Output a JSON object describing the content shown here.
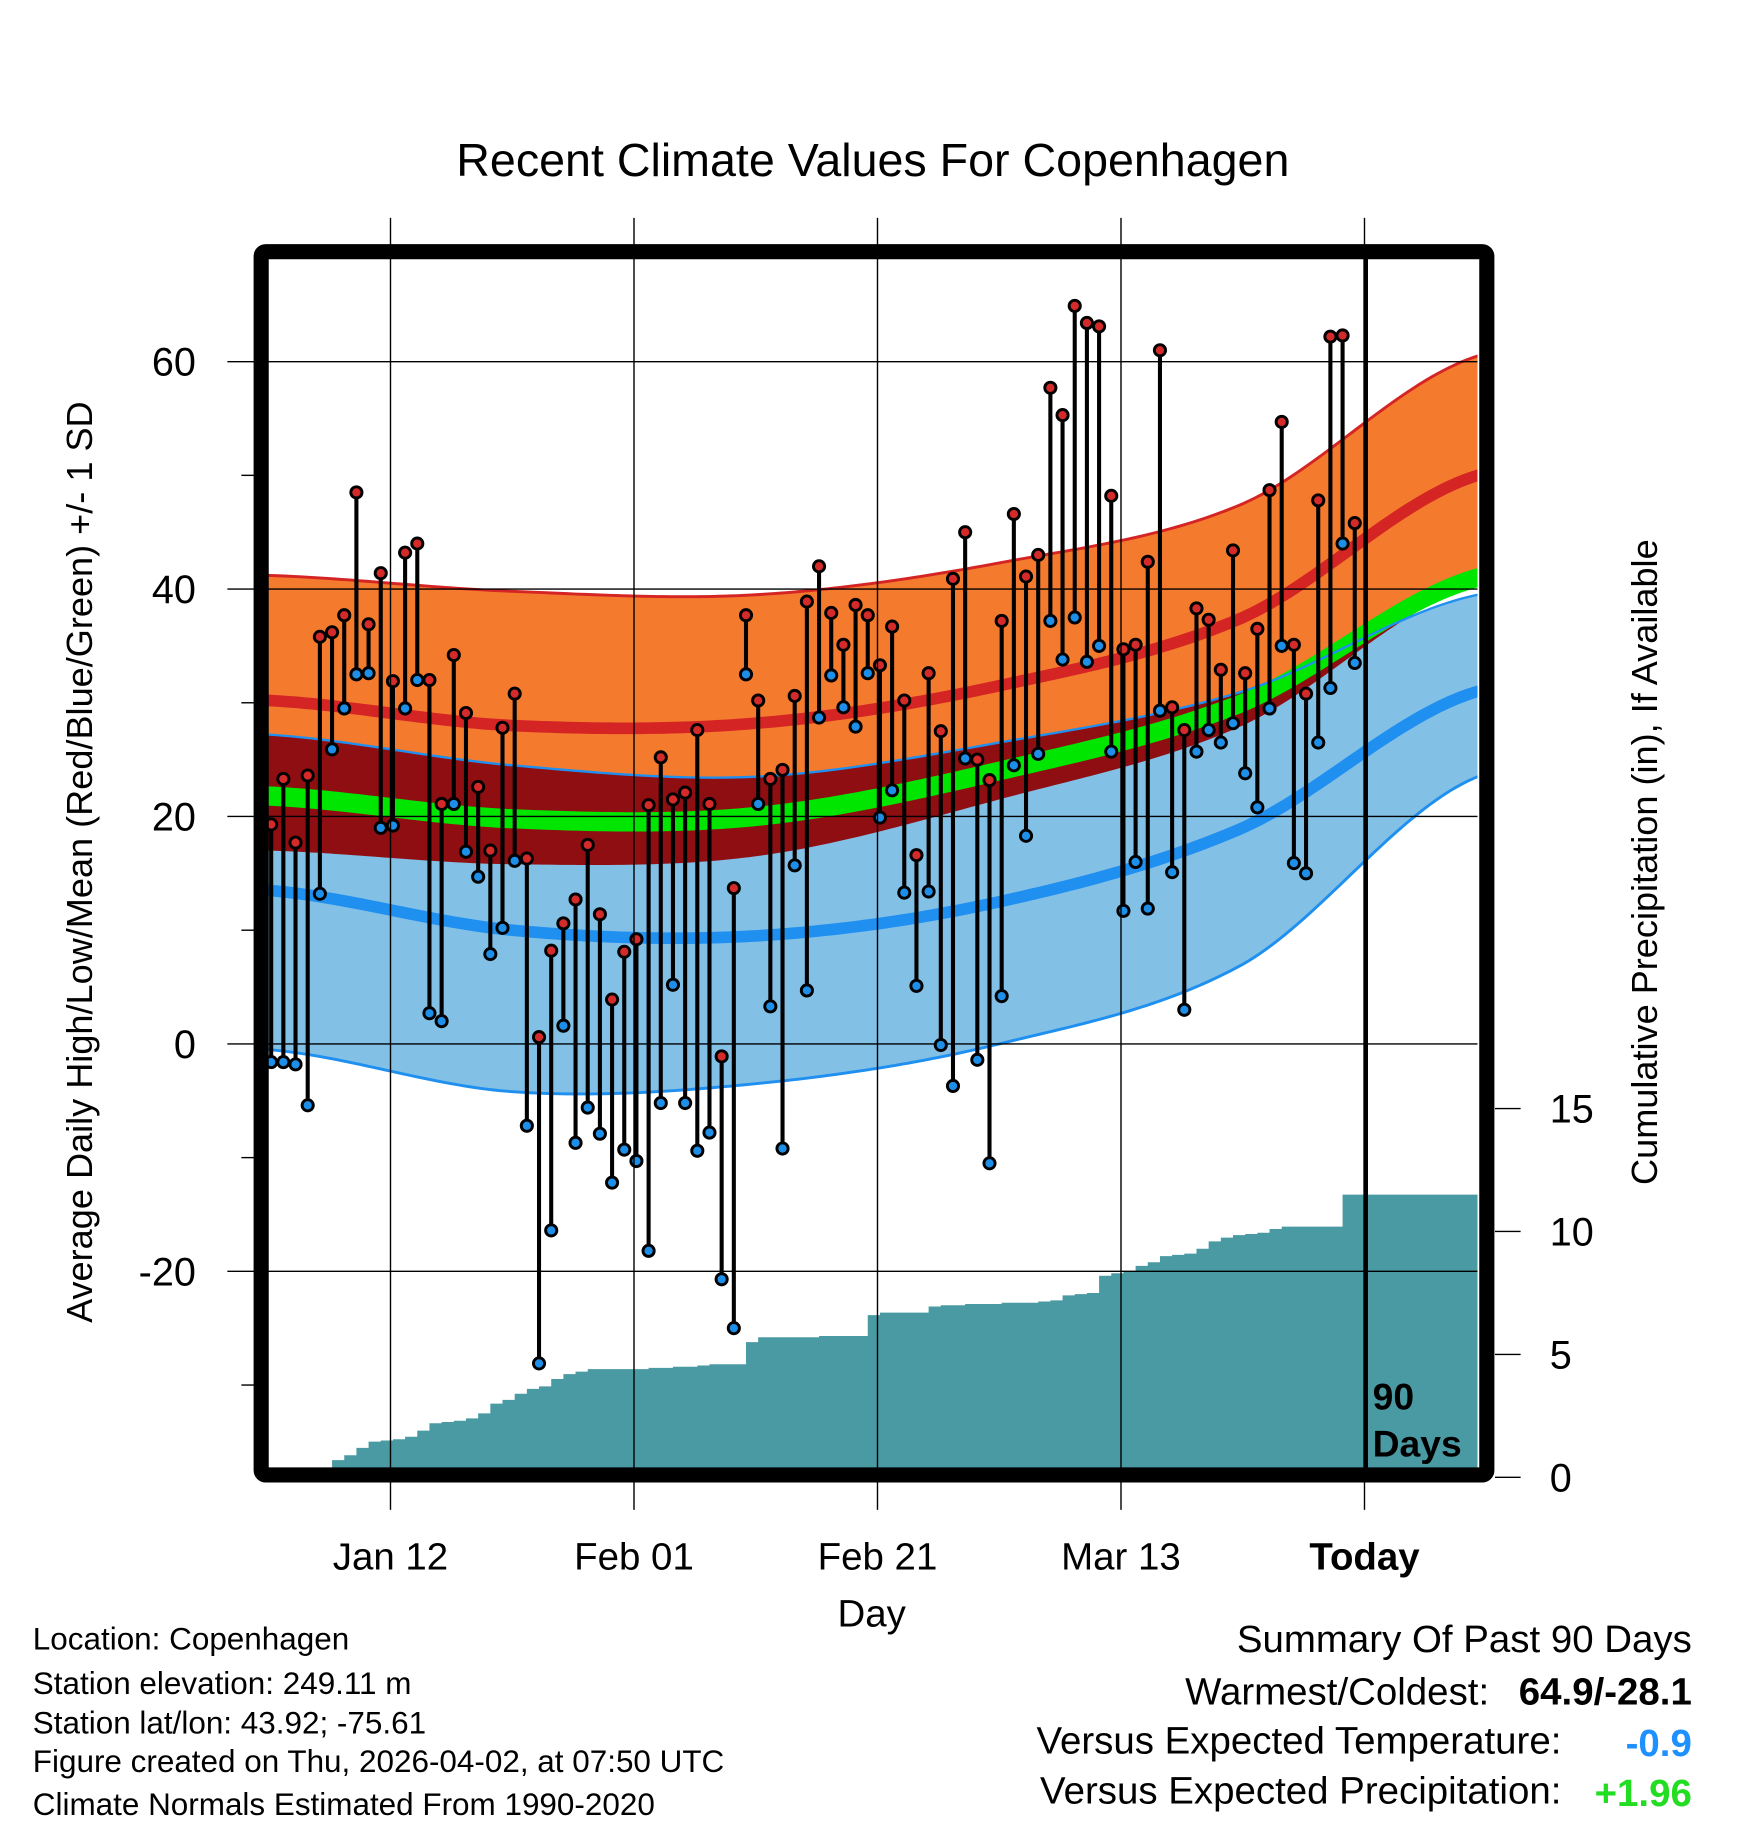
{
  "chart_data": {
    "type": "line",
    "title": "Recent Climate Values For Copenhagen",
    "xlabel": "Day",
    "ylabel": "Average Daily High/Low/Mean (Red/Blue/Green) +/- 1 SD",
    "y2label": "Cumulative Precipitation (in), If Available",
    "ylim": [
      -37.3,
      69
    ],
    "y2lim": [
      0,
      18
    ],
    "yticks": [
      "60",
      "40",
      "20",
      "0",
      "-20"
    ],
    "y2ticks": [
      "15",
      "10",
      "5",
      "0"
    ],
    "xticks": [
      "Jan 12",
      "Feb 01",
      "Feb 21",
      "Mar 13",
      "Today"
    ],
    "xtick_days": [
      10,
      30,
      50,
      70,
      90
    ],
    "x_range_days": [
      0,
      99.3
    ],
    "grid": true,
    "today_marker_label": [
      "90",
      "Days"
    ],
    "daily_high": [
      19.3,
      23.3,
      17.7,
      23.6,
      35.8,
      36.2,
      37.7,
      48.5,
      36.9,
      41.4,
      31.9,
      43.2,
      44.0,
      32.0,
      21.1,
      34.2,
      29.1,
      22.6,
      17.0,
      27.8,
      30.8,
      16.3,
      0.6,
      8.2,
      10.6,
      12.7,
      17.5,
      11.4,
      3.9,
      8.1,
      9.2,
      21.0,
      25.2,
      21.5,
      22.1,
      27.6,
      21.1,
      -1.1,
      13.7,
      37.7,
      30.2,
      23.3,
      24.1,
      30.6,
      38.9,
      42.0,
      37.9,
      35.1,
      38.6,
      37.7,
      33.3,
      36.7,
      30.2,
      16.6,
      32.6,
      27.5,
      40.9,
      45.0,
      25.0,
      23.2,
      37.2,
      46.6,
      41.1,
      43.0,
      57.7,
      55.3,
      64.9,
      63.4,
      63.1,
      48.2,
      34.7,
      35.1,
      42.4,
      61.0,
      29.6,
      27.6,
      38.3,
      37.3,
      32.9,
      43.4,
      32.6,
      36.5,
      48.7,
      54.7,
      35.1,
      30.8,
      47.8,
      62.2,
      62.3,
      45.8
    ],
    "daily_low": [
      -1.6,
      -1.6,
      -1.8,
      -5.4,
      13.2,
      25.9,
      29.5,
      32.5,
      32.6,
      19.0,
      19.2,
      29.5,
      32.0,
      2.7,
      2.0,
      21.1,
      16.9,
      14.7,
      7.9,
      10.2,
      16.1,
      -7.2,
      -28.1,
      -16.4,
      1.6,
      -8.7,
      -5.6,
      -7.9,
      -12.2,
      -9.3,
      -10.3,
      -18.2,
      -5.2,
      5.2,
      -5.2,
      -9.4,
      -7.8,
      -20.7,
      -25.0,
      32.5,
      21.1,
      3.3,
      -9.2,
      15.7,
      4.7,
      28.7,
      32.4,
      29.6,
      27.9,
      32.6,
      19.9,
      22.3,
      13.3,
      5.1,
      13.4,
      -0.1,
      -3.7,
      25.1,
      -1.4,
      -10.5,
      4.2,
      24.5,
      18.3,
      25.5,
      37.2,
      33.8,
      37.5,
      33.6,
      35.0,
      25.7,
      11.7,
      16.0,
      11.9,
      29.3,
      15.1,
      3.0,
      25.7,
      27.6,
      26.5,
      28.2,
      23.8,
      20.8,
      29.5,
      35.0,
      15.9,
      15.0,
      26.5,
      31.3,
      44.0,
      33.5
    ],
    "precip_cumulative": [
      0,
      0,
      0,
      0,
      0.2,
      0.7,
      0.9,
      1.2,
      1.45,
      1.5,
      1.55,
      1.65,
      1.9,
      2.2,
      2.25,
      2.3,
      2.4,
      2.6,
      3.0,
      3.15,
      3.4,
      3.6,
      3.7,
      4.0,
      4.2,
      4.3,
      4.4,
      4.4,
      4.4,
      4.4,
      4.4,
      4.45,
      4.45,
      4.5,
      4.5,
      4.55,
      4.6,
      4.6,
      4.6,
      5.5,
      5.7,
      5.7,
      5.7,
      5.7,
      5.7,
      5.75,
      5.75,
      5.75,
      5.75,
      6.6,
      6.7,
      6.7,
      6.7,
      6.7,
      6.95,
      7.0,
      7.0,
      7.05,
      7.05,
      7.05,
      7.1,
      7.1,
      7.1,
      7.15,
      7.2,
      7.4,
      7.45,
      7.5,
      8.2,
      8.3,
      8.4,
      8.6,
      8.75,
      9.0,
      9.05,
      9.1,
      9.3,
      9.6,
      9.75,
      9.85,
      9.9,
      9.95,
      10.1,
      10.2,
      10.2,
      10.2,
      10.2,
      10.2,
      11.5,
      11.5
    ],
    "normals": {
      "anchor_days": [
        0,
        20,
        40,
        60,
        80,
        99.3
      ],
      "high_plus_sd": [
        41.2,
        39.8,
        39.5,
        42.3,
        47.5,
        60.5
      ],
      "high_mean": [
        30.2,
        28.0,
        28.2,
        31.5,
        37.5,
        50.0
      ],
      "high_minus_sd": [
        17.0,
        15.8,
        16.5,
        21.5,
        28.0,
        40.5
      ],
      "mean": [
        21.8,
        19.8,
        20.0,
        24.0,
        30.0,
        41.0
      ],
      "low_plus_sd": [
        27.2,
        24.5,
        23.5,
        26.5,
        31.0,
        39.5
      ],
      "low_mean": [
        13.5,
        10.0,
        9.5,
        12.5,
        19.0,
        31.0
      ],
      "low_minus_sd": [
        -0.5,
        -4.2,
        -3.5,
        0.0,
        7.0,
        23.5
      ]
    },
    "colors": {
      "high_band": "#f47a2e",
      "overlap_band": "#8f0e12",
      "low_band": "#82c0e6",
      "mean_band": "#00e600",
      "high_line": "#d42424",
      "low_line": "#1f8ff0",
      "precip": "#4a9aa3",
      "high_marker": "#d42a2a",
      "low_marker": "#1e8fe8"
    }
  },
  "footer": {
    "location": "Location: Copenhagen",
    "elevation": "Station elevation: 249.11 m",
    "latlon": "Station lat/lon: 43.92; -75.61",
    "created": "Figure created on Thu, 2026-04-02, at 07:50 UTC",
    "normals": "Climate Normals Estimated From 1990-2020"
  },
  "summary": {
    "title": "Summary Of Past 90 Days",
    "warmest_label": "Warmest/Coldest:",
    "warmest_value": "64.9/-28.1",
    "temp_label": "Versus Expected Temperature:",
    "temp_value": "-0.9",
    "temp_color": "#1e90ff",
    "precip_label": "Versus Expected Precipitation:",
    "precip_value": "+1.96",
    "precip_color": "#22dd22"
  }
}
